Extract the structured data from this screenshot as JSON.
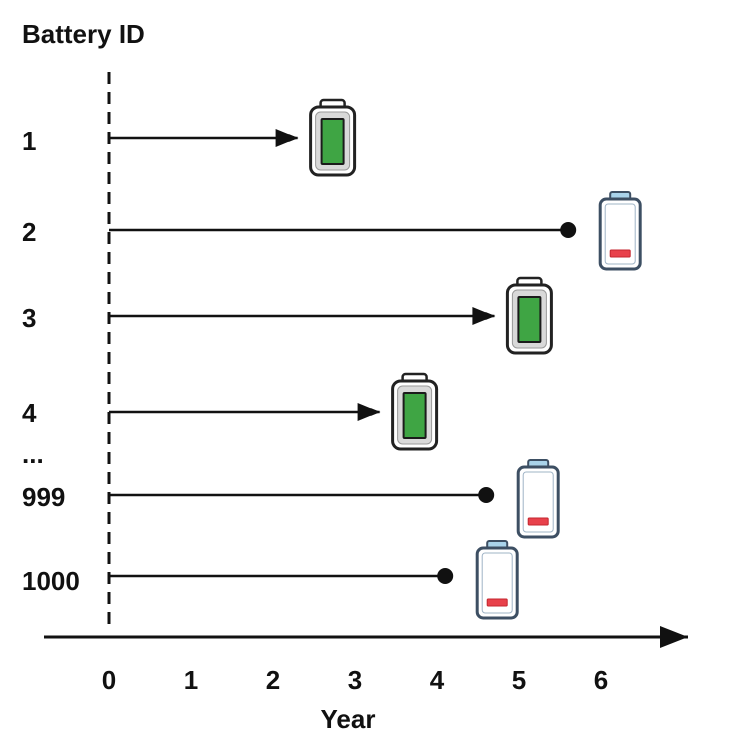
{
  "y_axis_title": "Battery ID",
  "x_axis_title": "Year",
  "x_ticks": [
    "0",
    "1",
    "2",
    "3",
    "4",
    "5",
    "6"
  ],
  "ellipsis": "...",
  "rows": [
    {
      "id": "1",
      "end_year": 2.3,
      "end": "arrow",
      "battery": "full"
    },
    {
      "id": "2",
      "end_year": 5.6,
      "end": "dot",
      "battery": "depleted"
    },
    {
      "id": "3",
      "end_year": 4.7,
      "end": "arrow",
      "battery": "full"
    },
    {
      "id": "4",
      "end_year": 3.3,
      "end": "arrow",
      "battery": "full"
    },
    {
      "id": "999",
      "end_year": 4.6,
      "end": "dot",
      "battery": "depleted"
    },
    {
      "id": "1000",
      "end_year": 4.1,
      "end": "dot",
      "battery": "depleted"
    }
  ],
  "colors": {
    "line": "#111111",
    "full_fill": "#3fa544",
    "full_outline": "#222222",
    "full_body": "#d9d9d9",
    "depleted_outline": "#3d4f63",
    "depleted_cap": "#a9d3ea",
    "depleted_fill": "#e8414b"
  }
}
